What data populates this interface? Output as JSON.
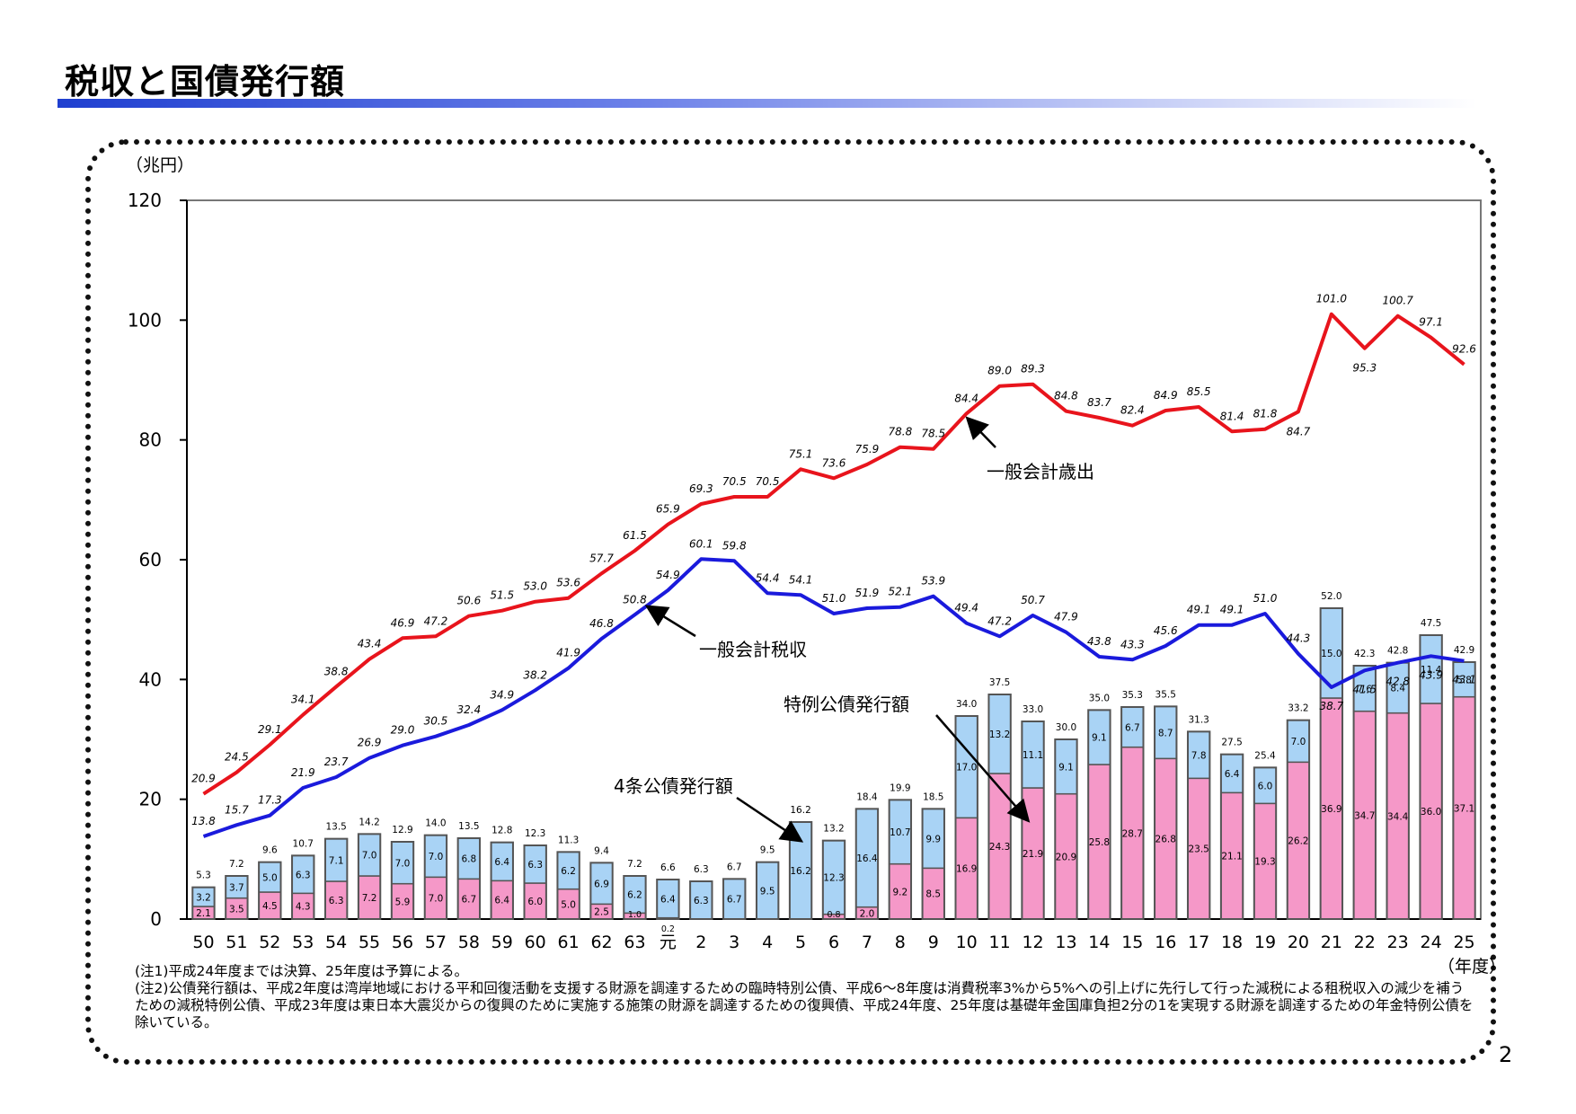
{
  "page": {
    "title": "税収と国債発行額",
    "page_number": "2",
    "notes": [
      "(注1)平成24年度までは決算、25年度は予算による。",
      "(注2)公債発行額は、平成2年度は湾岸地域における平和回復活動を支援する財源を調達するための臨時特別公債、平成6～8年度は消費税率3%から5%への引上げに先行して行った減税による租税収入の減少を補うための減税特例公債、平成23年度は東日本大震災からの復興のために実施する施策の財源を調達するための復興債、平成24年度、25年度は基礎年金国庫負担2分の1を実現する財源を調達するための年金特例公債を除いている。"
    ]
  },
  "colors": {
    "expenditure": "#e8141c",
    "tax": "#1a1adc",
    "construction_bond": "#a9d3f5",
    "deficit_bond": "#f598c8",
    "bar_outline": "#555555"
  },
  "chart_data": {
    "type": "bar+line",
    "ylabel": "（兆円）",
    "xlabel": "（年度）",
    "ylim": [
      0,
      120
    ],
    "yticks": [
      "0",
      "20",
      "40",
      "60",
      "80",
      "100",
      "120"
    ],
    "categories": [
      "50",
      "51",
      "52",
      "53",
      "54",
      "55",
      "56",
      "57",
      "58",
      "59",
      "60",
      "61",
      "62",
      "63",
      "元",
      "2",
      "3",
      "4",
      "5",
      "6",
      "7",
      "8",
      "9",
      "10",
      "11",
      "12",
      "13",
      "14",
      "15",
      "16",
      "17",
      "18",
      "19",
      "20",
      "21",
      "22",
      "23",
      "24",
      "25"
    ],
    "series": [
      {
        "name": "一般会計歳出",
        "kind": "line",
        "values": [
          20.9,
          24.5,
          29.1,
          34.1,
          38.8,
          43.4,
          46.9,
          47.2,
          50.6,
          51.5,
          53.0,
          53.6,
          57.7,
          61.5,
          65.9,
          69.3,
          70.5,
          70.5,
          75.1,
          73.6,
          75.9,
          78.8,
          78.5,
          84.4,
          89.0,
          89.3,
          84.8,
          83.7,
          82.4,
          84.9,
          85.5,
          81.4,
          81.8,
          84.7,
          101.0,
          95.3,
          100.7,
          97.1,
          92.6
        ],
        "labels": [
          "20.9",
          "24.5",
          "29.1",
          "34.1",
          "38.8",
          "43.4",
          "46.9",
          "47.2",
          "50.6",
          "51.5",
          "53.0",
          "53.6",
          "57.7",
          "61.5",
          "65.9",
          "69.3",
          "70.5",
          "70.5",
          "75.1",
          "73.6",
          "75.9",
          "78.8",
          "78.5",
          "84.4",
          "89.0",
          "89.3",
          "84.8",
          "83.7",
          "82.4",
          "84.9",
          "85.5",
          "81.4",
          "81.8",
          "84.7",
          "101.0",
          "95.3",
          "100.7",
          "97.1",
          "92.6"
        ]
      },
      {
        "name": "一般会計税収",
        "kind": "line",
        "values": [
          13.8,
          15.7,
          17.3,
          21.9,
          23.7,
          26.9,
          29.0,
          30.5,
          32.4,
          34.9,
          38.2,
          41.9,
          46.8,
          50.8,
          54.9,
          60.1,
          59.8,
          54.4,
          54.1,
          51.0,
          51.9,
          52.1,
          53.9,
          49.4,
          47.2,
          50.7,
          47.9,
          43.8,
          43.3,
          45.6,
          49.1,
          49.1,
          51.0,
          44.3,
          38.7,
          41.5,
          42.8,
          43.9,
          43.1
        ],
        "labels": [
          "13.8",
          "15.7",
          "17.3",
          "21.9",
          "23.7",
          "26.9",
          "29.0",
          "30.5",
          "32.4",
          "34.9",
          "38.2",
          "41.9",
          "46.8",
          "50.8",
          "54.9",
          "60.1",
          "59.8",
          "54.4",
          "54.1",
          "51.0",
          "51.9",
          "52.1",
          "53.9",
          "49.4",
          "47.2",
          "50.7",
          "47.9",
          "43.8",
          "43.3",
          "45.6",
          "49.1",
          "49.1",
          "51.0",
          "44.3",
          "38.7",
          "41.5",
          "42.8",
          "43.9",
          "43.1"
        ]
      },
      {
        "name": "特例公債発行額",
        "kind": "bar",
        "values": [
          2.1,
          3.5,
          4.5,
          4.3,
          6.3,
          7.2,
          5.9,
          7.0,
          6.7,
          6.4,
          6.0,
          5.0,
          2.5,
          1.0,
          0.2,
          0,
          0,
          0,
          0,
          0.8,
          2.0,
          9.2,
          8.5,
          16.9,
          24.3,
          21.9,
          20.9,
          25.8,
          28.7,
          26.8,
          23.5,
          21.1,
          19.3,
          26.2,
          36.9,
          34.7,
          34.4,
          36.0,
          37.1
        ],
        "labels": [
          "2.1",
          "3.5",
          "4.5",
          "4.3",
          "6.3",
          "7.2",
          "5.9",
          "7.0",
          "6.7",
          "6.4",
          "6.0",
          "5.0",
          "2.5",
          "1.0",
          "0.2",
          "",
          "",
          "",
          "",
          "0.8",
          "2.0",
          "9.2",
          "8.5",
          "16.9",
          "24.3",
          "21.9",
          "20.9",
          "25.8",
          "28.7",
          "26.8",
          "23.5",
          "21.1",
          "19.3",
          "26.2",
          "36.9",
          "34.7",
          "34.4",
          "36.0",
          "37.1"
        ]
      },
      {
        "name": "4条公債発行額",
        "kind": "bar",
        "values": [
          3.2,
          3.7,
          5.0,
          6.3,
          7.1,
          7.0,
          7.0,
          7.0,
          6.8,
          6.4,
          6.3,
          6.2,
          6.9,
          6.2,
          6.4,
          6.3,
          6.7,
          9.5,
          16.2,
          12.3,
          16.4,
          10.7,
          9.9,
          17.0,
          13.2,
          11.1,
          9.1,
          9.1,
          6.7,
          8.7,
          7.8,
          6.4,
          6.0,
          7.0,
          15.0,
          7.6,
          8.4,
          11.4,
          5.8
        ],
        "labels": [
          "3.2",
          "3.7",
          "5.0",
          "6.3",
          "7.1",
          "7.0",
          "7.0",
          "7.0",
          "6.8",
          "6.4",
          "6.3",
          "6.2",
          "6.9",
          "6.2",
          "6.4",
          "6.3",
          "6.7",
          "9.5",
          "16.2",
          "12.3",
          "16.4",
          "10.7",
          "9.9",
          "17.0",
          "13.2",
          "11.1",
          "9.1",
          "9.1",
          "6.7",
          "8.7",
          "7.8",
          "6.4",
          "6.0",
          "7.0",
          "15.0",
          "7.6",
          "8.4",
          "11.4",
          "5.8"
        ]
      }
    ],
    "bar_totals": [
      "5.3",
      "7.2",
      "9.6",
      "10.7",
      "13.5",
      "14.2",
      "12.9",
      "14.0",
      "13.5",
      "12.8",
      "12.3",
      "11.3",
      "9.4",
      "7.2",
      "6.6",
      "6.3",
      "6.7",
      "9.5",
      "16.2",
      "13.2",
      "18.4",
      "19.9",
      "18.5",
      "34.0",
      "37.5",
      "33.0",
      "30.0",
      "35.0",
      "35.3",
      "35.5",
      "31.3",
      "27.5",
      "25.4",
      "33.2",
      "52.0",
      "42.3",
      "42.8",
      "47.5",
      "42.9"
    ],
    "annotations": [
      "一般会計歳出",
      "一般会計税収",
      "特例公債発行額",
      "4条公債発行額"
    ]
  }
}
